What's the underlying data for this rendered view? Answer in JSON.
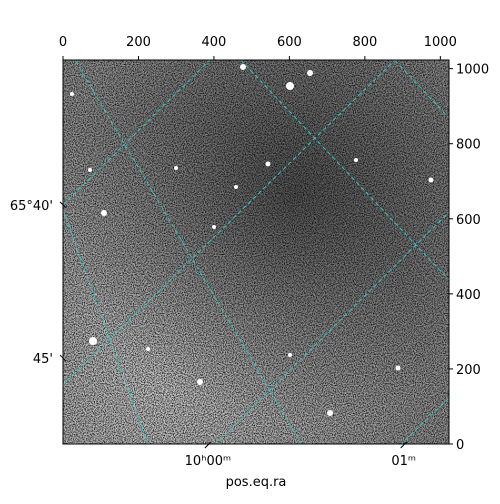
{
  "chart_data": {
    "type": "image",
    "xlabel": "pos.eq.ra",
    "xlim": [
      0,
      1023
    ],
    "ylim": [
      0,
      1023
    ],
    "xticks": [
      0,
      200,
      400,
      600,
      800,
      1000
    ],
    "yticks": [
      0,
      200,
      400,
      600,
      800,
      1000
    ],
    "world_xticks": [
      {
        "value": 384,
        "label": "10ʰ00ᵐ"
      },
      {
        "value": 903,
        "label": "01ᵐ"
      }
    ],
    "world_yticks": [
      {
        "value": 637,
        "label": "65°40'"
      },
      {
        "value": 229,
        "label": "45'"
      }
    ]
  }
}
